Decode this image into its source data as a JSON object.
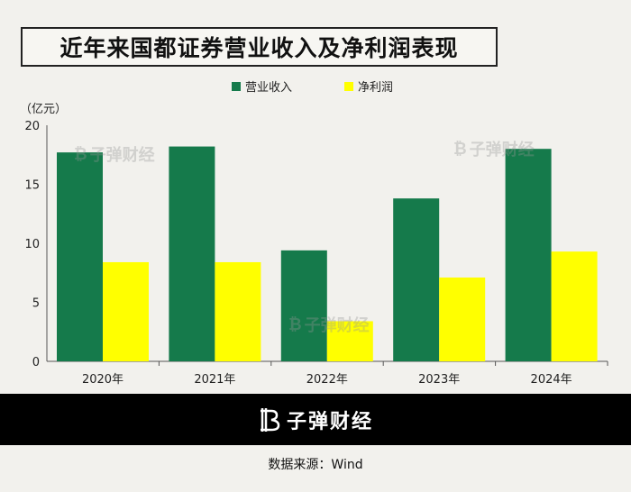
{
  "title": "近年来国都证券营业收入及净利润表现",
  "unit_label": "（亿元）",
  "source": "数据来源：Wind",
  "brand": "子弹财经",
  "colors": {
    "revenue": "#157a4b",
    "profit": "#ffff00",
    "axis": "#555555",
    "text": "#222222"
  },
  "chart_data": {
    "type": "bar",
    "categories": [
      "2020年",
      "2021年",
      "2022年",
      "2023年",
      "2024年"
    ],
    "series": [
      {
        "name": "营业收入",
        "values": [
          17.7,
          18.2,
          9.4,
          13.8,
          18.0
        ]
      },
      {
        "name": "净利润",
        "values": [
          8.4,
          8.4,
          3.4,
          7.1,
          9.3
        ]
      }
    ],
    "ylim": [
      0,
      20
    ],
    "yticks": [
      0,
      5,
      10,
      15,
      20
    ],
    "legend": "top-center",
    "grid": false
  }
}
